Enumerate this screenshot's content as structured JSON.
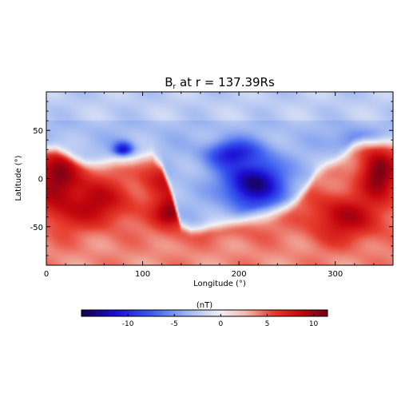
{
  "chart_data": {
    "type": "heatmap",
    "title_main": "B",
    "title_sub": "r",
    "title_rest": " at r = 137.39Rs",
    "xlabel": "Longitude (°)",
    "ylabel": "Latitude (°)",
    "xlim": [
      0,
      360
    ],
    "ylim": [
      -90,
      90
    ],
    "xticks": [
      0,
      100,
      200,
      300
    ],
    "xtick_labels": [
      "0",
      "100",
      "200",
      "300"
    ],
    "yticks": [
      -50,
      0,
      50
    ],
    "ytick_labels": [
      "-50",
      "0",
      "50"
    ],
    "grid": false,
    "colorscale": "blue-white-red",
    "colorbar": {
      "label": "(nT)",
      "range": [
        -15,
        11.5
      ],
      "ticks": [
        -10,
        -5,
        0,
        5,
        10
      ],
      "tick_labels": [
        "-10",
        "-5",
        "0",
        "5",
        "10"
      ],
      "colors": [
        "#14004a",
        "#1c0fd6",
        "#3a5cf0",
        "#9ab3f0",
        "#f3f3f8",
        "#f2b2a6",
        "#e63a2c",
        "#c4050d",
        "#6e0017"
      ]
    },
    "neutral_line": {
      "lon": [
        0,
        10,
        20,
        30,
        40,
        50,
        60,
        70,
        80,
        90,
        100,
        110,
        120,
        130,
        140,
        150,
        160,
        170,
        180,
        190,
        200,
        210,
        220,
        230,
        240,
        250,
        260,
        270,
        280,
        290,
        300,
        310,
        320,
        330,
        340,
        350,
        360
      ],
      "lat": [
        33,
        33,
        28,
        22,
        18,
        17,
        17,
        18,
        18,
        20,
        24,
        26,
        15,
        -13,
        -48,
        -53,
        -52,
        -49,
        -48,
        -46,
        -44,
        -41,
        -39,
        -38,
        -35,
        -30,
        -22,
        -10,
        6,
        13,
        18,
        25,
        34,
        38,
        39,
        40,
        39
      ]
    },
    "regions": [
      {
        "lon": 15,
        "lat": -5,
        "value": 11,
        "sx": 25,
        "sy": 35
      },
      {
        "lon": 50,
        "lat": -25,
        "value": 9,
        "sx": 40,
        "sy": 25
      },
      {
        "lon": 130,
        "lat": -35,
        "value": 11,
        "sx": 18,
        "sy": 20
      },
      {
        "lon": 120,
        "lat": 0,
        "value": 8,
        "sx": 22,
        "sy": 20
      },
      {
        "lon": 215,
        "lat": -5,
        "value": -14,
        "sx": 30,
        "sy": 25
      },
      {
        "lon": 195,
        "lat": 25,
        "value": -11,
        "sx": 28,
        "sy": 14
      },
      {
        "lon": 80,
        "lat": 30,
        "value": -11,
        "sx": 10,
        "sy": 8
      },
      {
        "lon": 320,
        "lat": 40,
        "value": -6,
        "sx": 25,
        "sy": 12
      },
      {
        "lon": 345,
        "lat": 5,
        "value": 11,
        "sx": 20,
        "sy": 28
      },
      {
        "lon": 310,
        "lat": -40,
        "value": 9,
        "sx": 40,
        "sy": 25
      },
      {
        "lon": 180,
        "lat": -55,
        "value": 5,
        "sx": 60,
        "sy": 12
      }
    ]
  }
}
